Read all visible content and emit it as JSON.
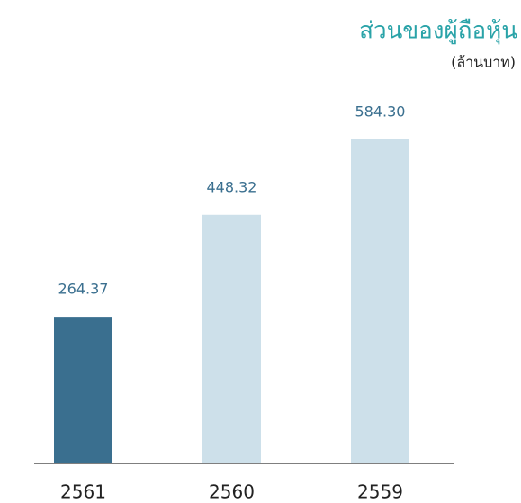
{
  "chart_data": {
    "type": "bar",
    "title": "ส่วนของผู้ถือหุ้น",
    "subtitle": "(ล้านบาท)",
    "categories": [
      "2561",
      "2560",
      "2559"
    ],
    "values": [
      264.37,
      448.32,
      584.3
    ],
    "value_labels": [
      "264.37",
      "448.32",
      "584.30"
    ],
    "colors": [
      "#3a6f8f",
      "#cde0ea",
      "#cde0ea"
    ],
    "label_color": "#3a6f8f",
    "title_color": "#2aa3a8"
  }
}
